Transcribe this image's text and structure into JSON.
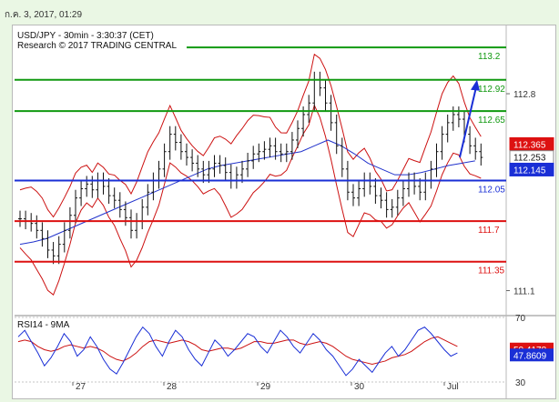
{
  "header": {
    "timestamp": "ก.ค. 3, 2017, 01:29"
  },
  "chart_data": [
    {
      "type": "line",
      "panel": "price",
      "title": "USD/JPY - 30min - 3:30:37 (CET)",
      "subtitle": "Research © 2017 TRADING CENTRAL",
      "ylim": [
        110.9,
        113.35
      ],
      "y_ticks": [
        "112.8",
        "111.1"
      ],
      "x_ticks": [
        "27",
        "28",
        "29",
        "30",
        "Jul"
      ],
      "levels": [
        {
          "label": "113.2",
          "value": 113.2,
          "color": "#119911"
        },
        {
          "label": "112.92",
          "value": 112.92,
          "color": "#119911"
        },
        {
          "label": "112.65",
          "value": 112.65,
          "color": "#119911"
        },
        {
          "label": "112.05",
          "value": 112.05,
          "color": "#1a2fd6"
        },
        {
          "label": "111.7",
          "value": 111.7,
          "color": "#dd1111"
        },
        {
          "label": "111.35",
          "value": 111.35,
          "color": "#dd1111"
        }
      ],
      "price_badges": [
        {
          "label": "112.365",
          "color": "#dd1111"
        },
        {
          "label": "112.253",
          "color": "#ffffff"
        },
        {
          "label": "112.145",
          "color": "#1a2fd6"
        }
      ],
      "series": [
        {
          "name": "price",
          "values": [
            111.72,
            111.7,
            111.68,
            111.62,
            111.55,
            111.45,
            111.4,
            111.5,
            111.62,
            111.75,
            111.9,
            111.98,
            112.02,
            111.97,
            112.05,
            112.0,
            111.92,
            111.88,
            111.8,
            111.73,
            111.62,
            111.7,
            111.82,
            111.95,
            112.05,
            112.15,
            112.3,
            112.45,
            112.38,
            112.3,
            112.25,
            112.2,
            112.15,
            112.1,
            112.15,
            112.2,
            112.18,
            112.12,
            112.05,
            112.1,
            112.15,
            112.22,
            112.28,
            112.3,
            112.32,
            112.35,
            112.3,
            112.28,
            112.3,
            112.4,
            112.5,
            112.62,
            112.72,
            112.92,
            112.85,
            112.72,
            112.55,
            112.35,
            112.15,
            111.95,
            111.9,
            111.98,
            112.05,
            112.0,
            111.92,
            111.88,
            111.8,
            111.82,
            111.9,
            111.98,
            112.05,
            112.0,
            111.95,
            112.05,
            112.15,
            112.3,
            112.45,
            112.55,
            112.62,
            112.58,
            112.45,
            112.35,
            112.3,
            112.25
          ]
        },
        {
          "name": "",
          "values": [
            111.5,
            111.52,
            111.55,
            111.6,
            111.65,
            111.7,
            111.75,
            111.8,
            111.85,
            111.9,
            111.95,
            112.0,
            112.05,
            112.1,
            112.15,
            112.18,
            112.2,
            112.22,
            112.24,
            112.26,
            112.28,
            112.3,
            112.35,
            112.4,
            112.35,
            112.28,
            112.2,
            112.15,
            112.1,
            112.1,
            112.12,
            112.15,
            112.18,
            112.2,
            112.22
          ]
        },
        {
          "name": "forecast",
          "values": [
            112.25,
            112.92
          ]
        }
      ]
    },
    {
      "type": "line",
      "panel": "indicator",
      "title": "RSI14 - 9MA",
      "ylim": [
        30,
        70
      ],
      "y_ticks": [
        "70",
        "30"
      ],
      "price_badges": [
        {
          "label": "50.4178",
          "color": "#dd1111"
        },
        {
          "label": "47.8609",
          "color": "#1a2fd6"
        }
      ],
      "series": [
        {
          "name": "RSI14",
          "values": [
            58,
            62,
            55,
            48,
            40,
            45,
            52,
            60,
            55,
            46,
            50,
            58,
            52,
            44,
            38,
            35,
            42,
            50,
            58,
            64,
            60,
            52,
            46,
            55,
            62,
            58,
            50,
            44,
            40,
            48,
            56,
            52,
            46,
            50,
            55,
            60,
            58,
            52,
            48,
            55,
            62,
            58,
            52,
            48,
            54,
            60,
            56,
            50,
            46,
            40,
            34,
            38,
            44,
            40,
            36,
            42,
            48,
            52,
            46,
            50,
            56,
            62,
            64,
            60,
            55,
            50,
            46,
            48
          ]
        },
        {
          "name": "9MA",
          "values": [
            55,
            56,
            55,
            52,
            50,
            49,
            50,
            52,
            53,
            52,
            51,
            52,
            51,
            49,
            46,
            44,
            43,
            45,
            48,
            52,
            55,
            56,
            55,
            54,
            55,
            56,
            55,
            53,
            50,
            49,
            50,
            51,
            51,
            50,
            51,
            53,
            55,
            55,
            54,
            54,
            55,
            56,
            56,
            54,
            53,
            54,
            55,
            54,
            52,
            49,
            46,
            44,
            43,
            42,
            41,
            42,
            43,
            45,
            46,
            47,
            49,
            52,
            55,
            57,
            58,
            56,
            54,
            52
          ]
        }
      ]
    }
  ]
}
